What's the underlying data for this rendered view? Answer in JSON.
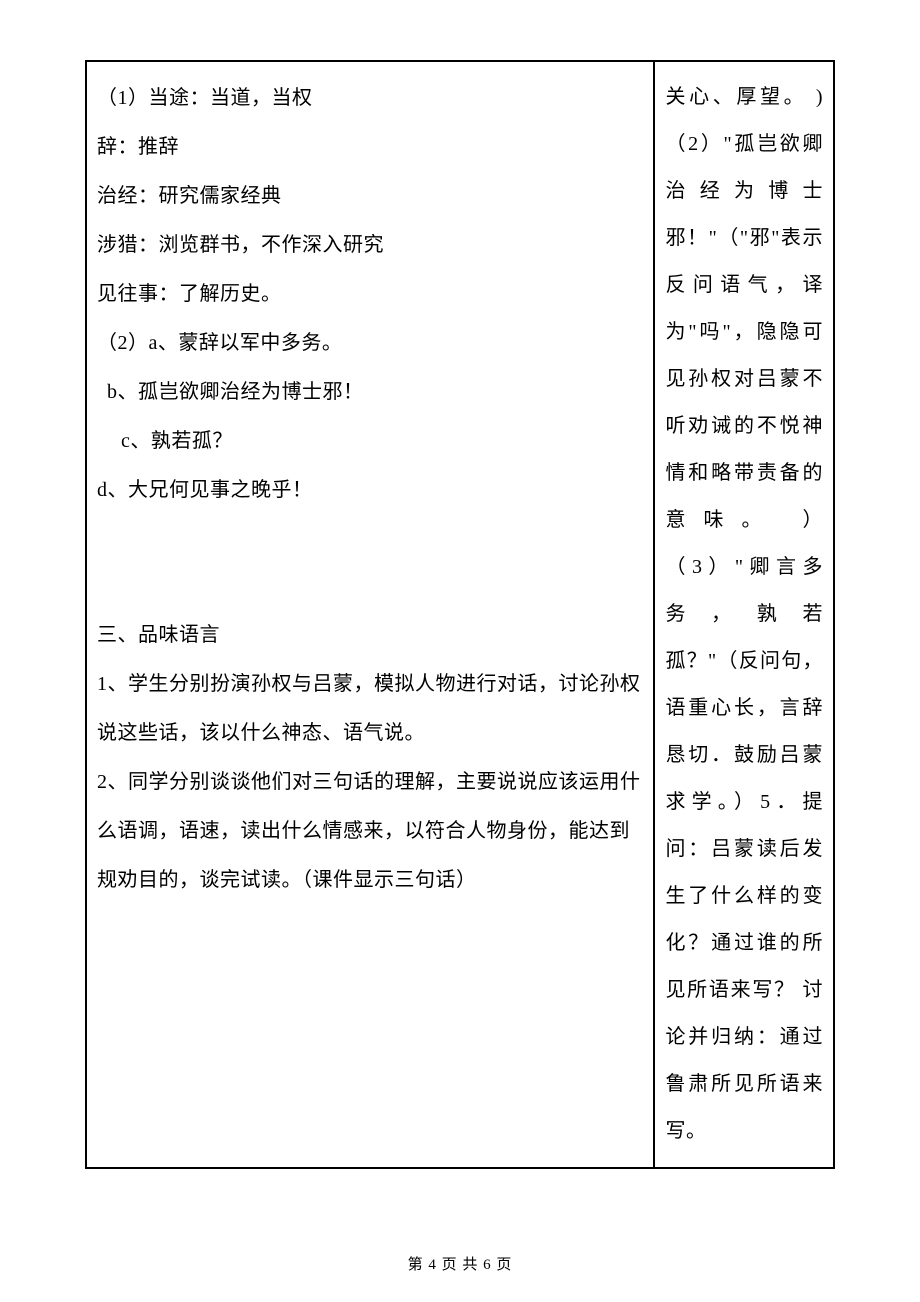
{
  "left": {
    "def1_head": "（1）当途：当道，当权",
    "def_ci": "辞：推辞",
    "def_zhijing": "治经：研究儒家经典",
    "def_shelie": "涉猎：浏览群书，不作深入研究",
    "def_jianwangshi": "见往事：了解历史。",
    "ex2a": "（2）a、蒙辞以军中多务。",
    "ex2b": "b、孤岂欲卿治经为博士邪！",
    "ex2c": "c、孰若孤？",
    "ex2d": "d、大兄何见事之晚乎！",
    "s3_title": "三、品味语言",
    "s3_p1": "1、学生分别扮演孙权与吕蒙，模拟人物进行对话，讨论孙权说这些话，该以什么神态、语气说。",
    "s3_p2": "2、同学分别谈谈他们对三句话的理解，主要说说应该运用什么语调，语速，读出什么情感来，以符合人物身份，能达到规劝目的，谈完试读。（课件显示三句话）"
  },
  "right": {
    "text": "关心、厚望。 )（2）\"孤岂欲卿治经为博士邪！\"（\"邪\"表示反问语气，译为\"吗\"，隐隐可见孙权对吕蒙不听劝诫的不悦神情和略带责备的意味。 ）（3）\"卿言多务，孰若孤？\"（反问句，语重心长，言辞恳切．鼓励吕蒙求学。）5．提问：吕蒙读后发生了什么样的变化？通过谁的所见所语来写？\n讨论并归纳：通过鲁肃所见所语来写。"
  },
  "footer": "第 4 页 共 6 页"
}
